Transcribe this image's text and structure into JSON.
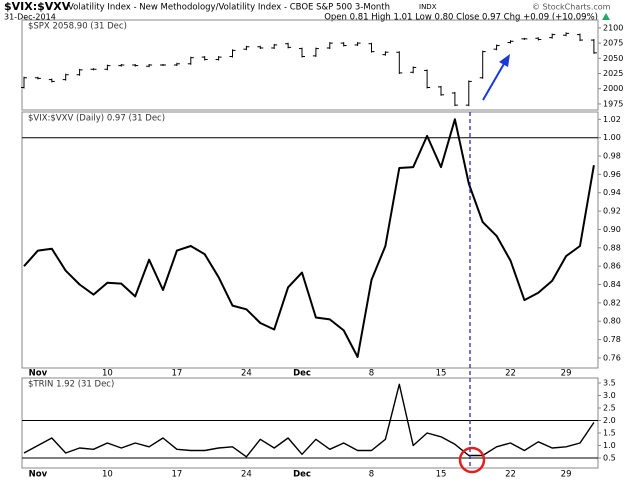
{
  "header": {
    "symbol": "$VIX:$VXV",
    "description": "Volatility Index - New Methodology/Volatility Index - CBOE S&P 500 3-Month",
    "exchange": "INDX",
    "date": "31-Dec-2014",
    "quote": "Open 0.81 High 1.01 Low 0.80 Close 0.97 Chg +0.09 (+10.09%)",
    "watermark": "© StockCharts.com"
  },
  "chart_data": [
    {
      "type": "ohlc",
      "title": "$SPX 2058.90 (31 Dec)",
      "color": "#000000",
      "open": [
        2002,
        2018,
        2015,
        2015,
        2023,
        2032,
        2032,
        2038,
        2039,
        2037,
        2039,
        2039,
        2041,
        2052,
        2048,
        2053,
        2065,
        2069,
        2067,
        2074,
        2066,
        2054,
        2067,
        2075,
        2072,
        2074,
        2056,
        2060,
        2027,
        2030,
        2003,
        1993,
        1973,
        2018,
        2065,
        2076,
        2082,
        2083,
        2084,
        2088,
        2089,
        2080
      ],
      "close": [
        2018,
        2017,
        2012,
        2023,
        2031,
        2032,
        2038,
        2039,
        2038,
        2039,
        2039,
        2041,
        2051,
        2048,
        2052,
        2063,
        2069,
        2067,
        2072,
        2068,
        2053,
        2066,
        2075,
        2071,
        2075,
        2061,
        2060,
        2026,
        2035,
        2002,
        1990,
        1973,
        2012,
        2061,
        2071,
        2078,
        2082,
        2081,
        2089,
        2091,
        2080,
        2059
      ],
      "ylim": [
        1965,
        2113
      ],
      "yticks": [
        1975,
        2000,
        2025,
        2050,
        2075,
        2100
      ]
    },
    {
      "type": "line",
      "title": "$VIX:$VXV (Daily) 0.97 (31 Dec)",
      "color": "#000000",
      "categories": [
        null,
        "Nov",
        null,
        null,
        null,
        null,
        "10",
        null,
        null,
        null,
        null,
        "17",
        null,
        null,
        null,
        null,
        "24",
        null,
        null,
        null,
        "Dec",
        null,
        null,
        null,
        null,
        "8",
        null,
        null,
        null,
        null,
        "15",
        null,
        null,
        null,
        null,
        "22",
        null,
        null,
        null,
        "29",
        null,
        null
      ],
      "values": [
        0.86,
        0.877,
        0.879,
        0.855,
        0.84,
        0.829,
        0.842,
        0.841,
        0.827,
        0.867,
        0.834,
        0.877,
        0.882,
        0.873,
        0.848,
        0.817,
        0.813,
        0.798,
        0.791,
        0.837,
        0.853,
        0.804,
        0.802,
        0.79,
        0.761,
        0.845,
        0.882,
        0.967,
        0.968,
        1.002,
        0.968,
        1.02,
        0.95,
        0.908,
        0.893,
        0.866,
        0.823,
        0.831,
        0.844,
        0.871,
        0.882,
        0.97
      ],
      "ylim": [
        0.749,
        1.028
      ],
      "yticks": [
        0.76,
        0.78,
        {
          "value": 0.8,
          "label": "0.80"
        },
        0.82,
        0.84,
        0.86,
        0.88,
        {
          "value": 0.9,
          "label": "0.90"
        },
        0.92,
        0.94,
        0.96,
        0.98,
        {
          "value": 1,
          "label": "1.00"
        },
        1.02
      ],
      "hlines": [
        1
      ]
    },
    {
      "type": "line",
      "title": "$TRIN 1.92 (31 Dec)",
      "color": "#000000",
      "categories": [
        null,
        "Nov",
        null,
        null,
        null,
        null,
        "10",
        null,
        null,
        null,
        null,
        "17",
        null,
        null,
        null,
        null,
        "24",
        null,
        null,
        null,
        "Dec",
        null,
        null,
        null,
        null,
        "8",
        null,
        null,
        null,
        null,
        "15",
        null,
        null,
        null,
        null,
        "22",
        null,
        null,
        null,
        "29",
        null,
        null
      ],
      "values": [
        0.7,
        1.0,
        1.3,
        0.7,
        0.9,
        0.85,
        1.1,
        0.9,
        1.1,
        0.95,
        1.3,
        0.85,
        0.8,
        0.8,
        0.9,
        0.95,
        0.55,
        1.25,
        0.9,
        1.3,
        0.65,
        1.25,
        0.85,
        1.1,
        0.8,
        0.8,
        1.25,
        3.45,
        1.0,
        1.5,
        1.35,
        1.05,
        0.6,
        0.6,
        0.95,
        1.1,
        0.8,
        1.15,
        0.9,
        0.95,
        1.1,
        1.92
      ],
      "ylim": [
        0.1,
        3.7
      ],
      "yticks": [
        0.5,
        {
          "value": 1,
          "label": "1.0"
        },
        1.5,
        {
          "value": 2,
          "label": "2.0"
        },
        2.5,
        {
          "value": 3,
          "label": "3.0"
        },
        3.5
      ],
      "hlines": [
        0.5,
        2
      ]
    }
  ]
}
